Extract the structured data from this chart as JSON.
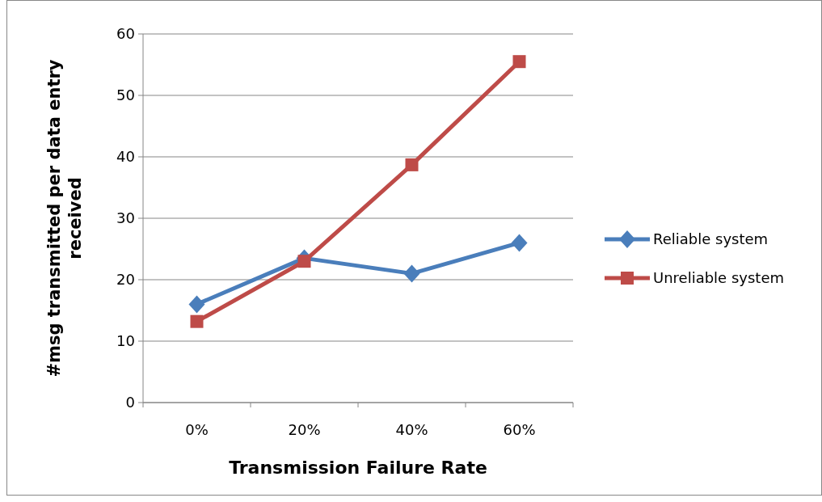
{
  "chart_data": {
    "type": "line",
    "xlabel": "Transmission Failure Rate",
    "ylabel": "#msg transmitted per data entry received",
    "categories": [
      "0%",
      "20%",
      "40%",
      "60%"
    ],
    "ylim": [
      0,
      60
    ],
    "yticks": [
      0,
      10,
      20,
      30,
      40,
      50,
      60
    ],
    "grid": "y",
    "legend": "right",
    "line_style": "solid",
    "series": [
      {
        "name": "Reliable system",
        "color": "#4a7ebb",
        "marker": "diamond",
        "values": [
          16,
          23.5,
          21,
          26
        ]
      },
      {
        "name": "Unreliable system",
        "color": "#be4b48",
        "marker": "square",
        "values": [
          13.2,
          23,
          38.7,
          55.5
        ]
      }
    ]
  }
}
